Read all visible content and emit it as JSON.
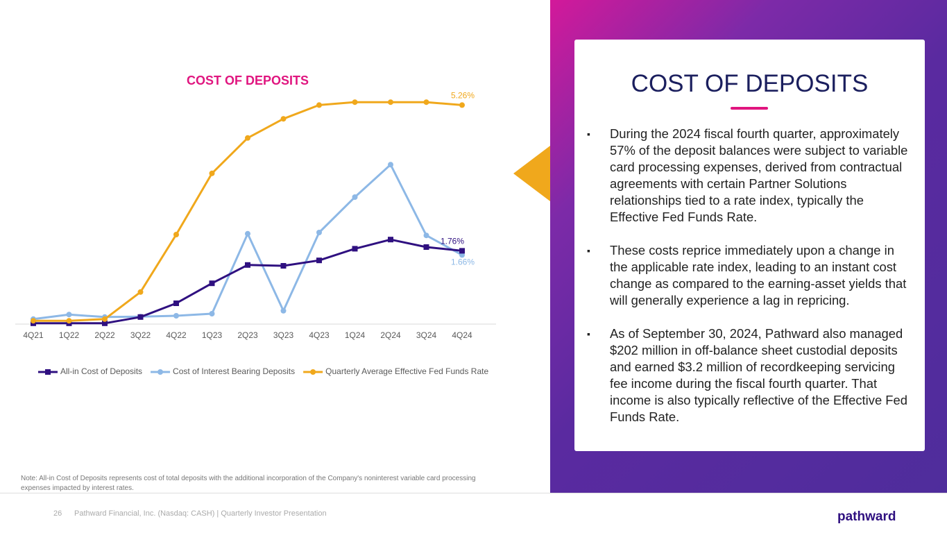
{
  "chart_data": {
    "type": "line",
    "title": "COST OF DEPOSITS",
    "categories": [
      "4Q21",
      "1Q22",
      "2Q22",
      "3Q22",
      "4Q22",
      "1Q23",
      "2Q23",
      "3Q23",
      "4Q23",
      "1Q24",
      "2Q24",
      "3Q24",
      "4Q24"
    ],
    "series": [
      {
        "name": "All-in Cost of Deposits",
        "color": "#2f1080",
        "marker": "square",
        "values": [
          0.02,
          0.02,
          0.02,
          0.17,
          0.5,
          0.98,
          1.42,
          1.4,
          1.53,
          1.81,
          2.03,
          1.85,
          1.76
        ],
        "value_labels": [
          null,
          null,
          null,
          null,
          null,
          null,
          null,
          null,
          null,
          null,
          null,
          null,
          "1.76%"
        ]
      },
      {
        "name": "Cost of Interest Bearing Deposits",
        "color": "#8db8e6",
        "marker": "circle",
        "values": [
          0.12,
          0.23,
          0.17,
          0.18,
          0.2,
          0.25,
          2.17,
          0.32,
          2.2,
          3.05,
          3.83,
          2.13,
          1.66
        ],
        "value_labels": [
          null,
          null,
          null,
          null,
          null,
          null,
          null,
          null,
          null,
          null,
          null,
          null,
          "1.66%"
        ]
      },
      {
        "name": "Quarterly Average Effective Fed Funds Rate",
        "color": "#f0a81c",
        "marker": "circle",
        "values": [
          0.08,
          0.08,
          0.12,
          0.77,
          2.15,
          3.62,
          4.47,
          4.93,
          5.26,
          5.33,
          5.33,
          5.33,
          5.26
        ],
        "value_labels": [
          null,
          null,
          null,
          null,
          null,
          null,
          null,
          null,
          null,
          null,
          null,
          null,
          "5.26%"
        ]
      }
    ],
    "ylim": [
      0,
      6
    ],
    "grid": false,
    "legend": "bottom"
  },
  "panel": {
    "title": "COST OF DEPOSITS",
    "bullets": [
      "During the 2024 fiscal fourth quarter, approximately 57% of the deposit balances were subject to variable card processing expenses, derived from contractual agreements with certain Partner Solutions relationships tied to a rate index, typically the Effective Fed Funds Rate.",
      "These costs reprice immediately upon a change in the applicable rate index, leading to an instant cost change as compared to the earning-asset yields that will generally experience a lag in repricing.",
      "As of September 30, 2024, Pathward also managed $202 million in off-balance sheet custodial deposits and earned $3.2 million of recordkeeping servicing fee income during the fiscal fourth quarter. That income is also typically reflective of the Effective Fed Funds Rate."
    ]
  },
  "note": "Note: All-in Cost of Deposits represents cost of total deposits with the additional incorporation of the Company's noninterest variable card processing expenses impacted by interest rates.",
  "footer": {
    "page": "26",
    "text": "Pathward Financial, Inc. (Nasdaq: CASH) | Quarterly Investor Presentation",
    "logo": "pathward"
  }
}
